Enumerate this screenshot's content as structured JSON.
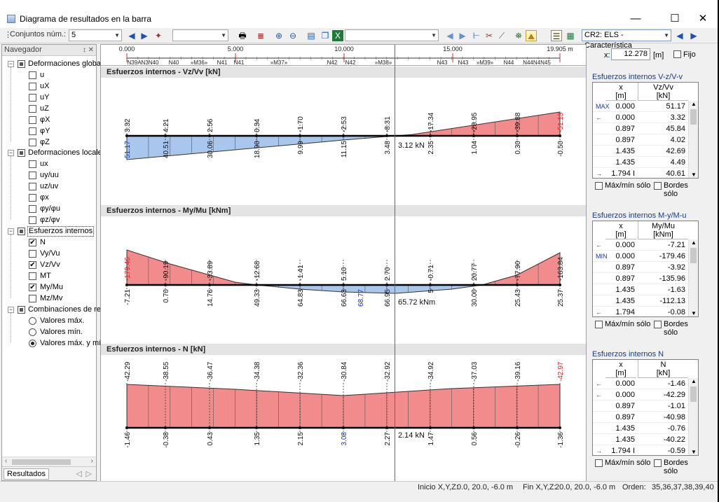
{
  "window": {
    "title": "Diagrama de resultados en la barra",
    "minimize": "—",
    "maximize": "☐",
    "close": "✕"
  },
  "toolbar": {
    "conjuntos_label": "Conjuntos núm.:",
    "conjuntos_value": "5",
    "combo2_value": "",
    "combo3_value": "",
    "load_combo": "CR2: ELS - Característica"
  },
  "coord": {
    "label": "x:",
    "value": "12.278",
    "unit": "[m]",
    "fixed_label": "Fijo"
  },
  "navigator": {
    "title": "Navegador",
    "pins": "↕ ✕",
    "footer_tab": "Resultados",
    "nodes": [
      {
        "text": "Deformaciones globa"
      },
      {
        "text": "u"
      },
      {
        "text": "uX"
      },
      {
        "text": "uY"
      },
      {
        "text": "uZ"
      },
      {
        "text": "φX"
      },
      {
        "text": "φY"
      },
      {
        "text": "φZ"
      },
      {
        "text": "Deformaciones locale"
      },
      {
        "text": "ux"
      },
      {
        "text": "uy/uu"
      },
      {
        "text": "uz/uv"
      },
      {
        "text": "φx"
      },
      {
        "text": "φy/φu"
      },
      {
        "text": "φz/φv"
      },
      {
        "text": "Esfuerzos internos"
      },
      {
        "text": "N"
      },
      {
        "text": "Vy/Vu"
      },
      {
        "text": "Vz/Vv"
      },
      {
        "text": "MT"
      },
      {
        "text": "My/Mu"
      },
      {
        "text": "Mz/Mv"
      },
      {
        "text": "Combinaciones de re"
      },
      {
        "text": "Valores máx."
      },
      {
        "text": "Valores mín."
      },
      {
        "text": "Valores máx. y mí"
      }
    ]
  },
  "ruler": {
    "ticks": [
      "0.000",
      "5.000",
      "10.000",
      "15.000",
      "19.905 m"
    ],
    "nodes": [
      "N39AN3N40",
      "N40",
      "»M36»",
      "N41",
      "N41",
      "»M37»",
      "N42",
      "N42",
      "»M38»",
      "N43",
      "N43",
      "»M39»",
      "N44",
      "N44N4N45"
    ]
  },
  "sections": [
    {
      "title": "Esfuerzos internos - Vz/Vv [kN]",
      "cursor_label": "3.12 kN"
    },
    {
      "title": "Esfuerzos internos - My/Mu [kNm]",
      "cursor_label": "65.72 kNm"
    },
    {
      "title": "Esfuerzos internos - N [kN]",
      "cursor_label": "2.14 kN"
    }
  ],
  "diagrams": {
    "vz": {
      "top": [
        "3.32",
        "4.21",
        "2.56",
        "0.34",
        "-1.70",
        "-2.53",
        "-8.31",
        "-17.34",
        "-28.95",
        "-39.88",
        "-51.13"
      ],
      "bottom": [
        "51.17",
        "40.51",
        "30.06",
        "18.90",
        "9.99",
        "11.15",
        "3.48",
        "2.35",
        "1.04",
        "0.30",
        "-0.50"
      ]
    },
    "my": {
      "top": [
        "-179.46",
        "-90.19",
        "-33.89",
        "-12.68",
        "-1.41",
        "5.10",
        "2.70",
        "-0.71",
        "20.77",
        "-77.90",
        "-163.84"
      ],
      "bottom": [
        "-7.21",
        "0.70",
        "14.76",
        "49.33",
        "64.83",
        "66.63",
        "68.77",
        "66.95",
        "5",
        "30.00",
        "25.43",
        "25.37"
      ]
    },
    "n": {
      "top": [
        "-42.29",
        "-38.55",
        "-36.47",
        "-34.38",
        "-32.36",
        "-30.84",
        "-32.92",
        "-34.92",
        "-37.03",
        "-39.16",
        "-42.97"
      ],
      "bottom": [
        "-1.46",
        "-0.38",
        "0.43",
        "1.35",
        "2.15",
        "3.08",
        "2.27",
        "1.47",
        "0.56",
        "-0.26",
        "-1.36"
      ]
    }
  },
  "result_panels": [
    {
      "title": "Esfuerzos internos V-z/V-v",
      "col_x": "x",
      "col_x_unit": "[m]",
      "col_v": "Vz/Vv",
      "col_v_unit": "[kN]",
      "rows": [
        {
          "mark": "MAX",
          "x": "0.000",
          "v": "51.17"
        },
        {
          "mark": "←",
          "x": "0.000",
          "v": "3.32"
        },
        {
          "mark": "",
          "x": "0.897",
          "v": "45.84"
        },
        {
          "mark": "",
          "x": "0.897",
          "v": "4.02"
        },
        {
          "mark": "",
          "x": "1.435",
          "v": "42.69"
        },
        {
          "mark": "",
          "x": "1.435",
          "v": "4.49"
        },
        {
          "mark": "→",
          "x": "1.794 I",
          "v": "40.61"
        }
      ],
      "check1": "Máx/mín sólo",
      "check2": "Bordes sólo"
    },
    {
      "title": "Esfuerzos internos M-y/M-u",
      "col_x": "x",
      "col_x_unit": "[m]",
      "col_v": "My/Mu",
      "col_v_unit": "[kNm]",
      "rows": [
        {
          "mark": "←",
          "x": "0.000",
          "v": "-7.21"
        },
        {
          "mark": "MIN",
          "x": "0.000",
          "v": "-179.46"
        },
        {
          "mark": "",
          "x": "0.897",
          "v": "-3.92"
        },
        {
          "mark": "",
          "x": "0.897",
          "v": "-135.96"
        },
        {
          "mark": "",
          "x": "1.435",
          "v": "-1.63"
        },
        {
          "mark": "",
          "x": "1.435",
          "v": "-112.13"
        },
        {
          "mark": "←",
          "x": "1.794",
          "v": "-0.08"
        }
      ],
      "check1": "Máx/mín sólo",
      "check2": "Bordes sólo"
    },
    {
      "title": "Esfuerzos internos N",
      "col_x": "x",
      "col_x_unit": "[m]",
      "col_v": "N",
      "col_v_unit": "[kN]",
      "rows": [
        {
          "mark": "←",
          "x": "0.000",
          "v": "-1.46"
        },
        {
          "mark": "←",
          "x": "0.000",
          "v": "-42.29"
        },
        {
          "mark": "",
          "x": "0.897",
          "v": "-1.01"
        },
        {
          "mark": "",
          "x": "0.897",
          "v": "-40.98"
        },
        {
          "mark": "",
          "x": "1.435",
          "v": "-0.76"
        },
        {
          "mark": "",
          "x": "1.435",
          "v": "-40.22"
        },
        {
          "mark": "→",
          "x": "1.794 I",
          "v": "-0.59"
        }
      ],
      "check1": "Máx/mín sólo",
      "check2": "Bordes sólo"
    }
  ],
  "status": {
    "inicio_label": "Inicio X,Y,Z:",
    "inicio_value": "0.0, 20.0, -6.0 m",
    "fin_label": "Fin X,Y,Z:",
    "fin_value": "20.0, 20.0, -6.0 m",
    "orden_label": "Orden:",
    "orden_value": "35,36,37,38,39,40"
  },
  "colors": {
    "positive": "#f28b8b",
    "negative": "#a9c7ec",
    "max_label": "#e0202a",
    "min_label": "#1030c0"
  }
}
